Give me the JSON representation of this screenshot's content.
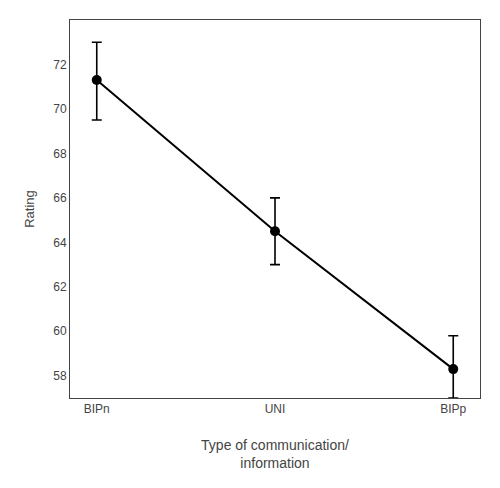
{
  "chart_data": {
    "type": "line",
    "xlabel": "Type of communication/\ninformation",
    "ylabel": "Rating",
    "categories": [
      "BIPn",
      "UNI",
      "BIPp"
    ],
    "values": [
      71.3,
      64.5,
      58.3
    ],
    "error_upper": [
      1.7,
      1.5,
      1.5
    ],
    "error_lower": [
      1.8,
      1.5,
      1.3
    ],
    "color": "#000000",
    "marker": "circle",
    "ylim": [
      57.0,
      74.0
    ],
    "yticks": [
      58,
      60,
      62,
      64,
      66,
      68,
      70,
      72
    ],
    "grid": false
  }
}
